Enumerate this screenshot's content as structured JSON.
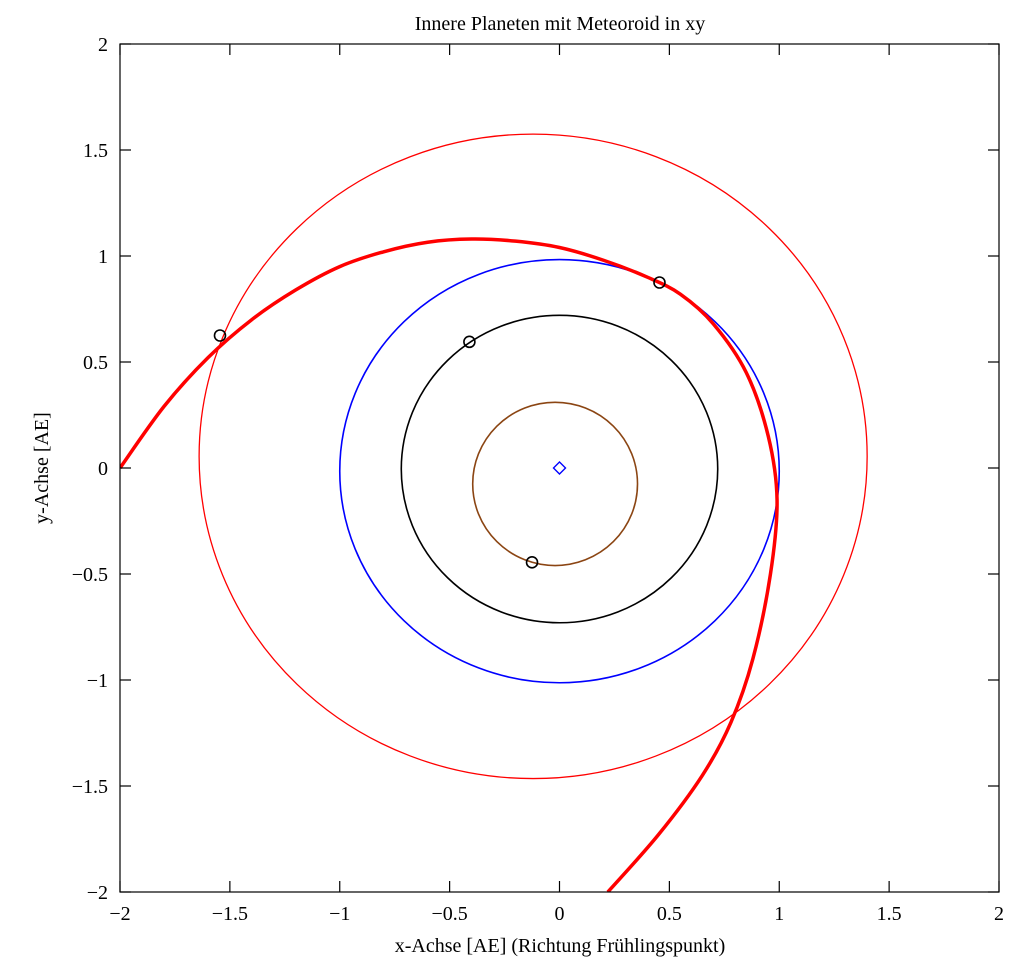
{
  "chart_data": {
    "type": "line",
    "title": "Innere Planeten mit Meteoroid in xy",
    "xlabel": "x-Achse [AE] (Richtung Frühlingspunkt)",
    "ylabel": "y-Achse [AE]",
    "xlim": [
      -2,
      2
    ],
    "ylim": [
      -2,
      2
    ],
    "xticks": [
      -2,
      -1.5,
      -1,
      -0.5,
      0,
      0.5,
      1,
      1.5,
      2
    ],
    "yticks": [
      -2,
      -1.5,
      -1,
      -0.5,
      0,
      0.5,
      1,
      1.5,
      2
    ],
    "xtick_labels": [
      "−2",
      "−1.5",
      "−1",
      "−0.5",
      "0",
      "0.5",
      "1",
      "1.5",
      "2"
    ],
    "ytick_labels": [
      "−2",
      "−1.5",
      "−1",
      "−0.5",
      "0",
      "0.5",
      "1",
      "1.5",
      "2"
    ],
    "grid": false,
    "orbits": [
      {
        "color": "#8B4513",
        "center": [
          -0.02,
          -0.075
        ],
        "rx": 0.375,
        "ry": 0.385
      },
      {
        "color": "#000000",
        "center": [
          0.0,
          -0.005
        ],
        "rx": 0.72,
        "ry": 0.725
      },
      {
        "color": "#0000ff",
        "center": [
          0.0,
          -0.015
        ],
        "rx": 1.0,
        "ry": 0.998
      },
      {
        "color": "#ff0000",
        "center": [
          -0.12,
          0.055
        ],
        "rx": 1.52,
        "ry": 1.52
      }
    ],
    "meteoroid_path": {
      "color": "#ff0000",
      "points": [
        [
          -2.0,
          0.0
        ],
        [
          -1.8,
          0.29
        ],
        [
          -1.6,
          0.52
        ],
        [
          -1.4,
          0.7
        ],
        [
          -1.2,
          0.84
        ],
        [
          -1.0,
          0.95
        ],
        [
          -0.8,
          1.02
        ],
        [
          -0.6,
          1.065
        ],
        [
          -0.4,
          1.08
        ],
        [
          -0.2,
          1.07
        ],
        [
          0.0,
          1.04
        ],
        [
          0.2,
          0.98
        ],
        [
          0.4,
          0.9
        ],
        [
          0.55,
          0.82
        ],
        [
          0.7,
          0.68
        ],
        [
          0.85,
          0.45
        ],
        [
          0.95,
          0.15
        ],
        [
          0.99,
          -0.15
        ],
        [
          0.96,
          -0.5
        ],
        [
          0.88,
          -0.9
        ],
        [
          0.78,
          -1.2
        ],
        [
          0.65,
          -1.45
        ],
        [
          0.45,
          -1.73
        ],
        [
          0.22,
          -2.0
        ]
      ]
    },
    "planet_positions": [
      {
        "x": -0.125,
        "y": -0.445,
        "color": "#000000"
      },
      {
        "x": -0.41,
        "y": 0.595,
        "color": "#000000"
      },
      {
        "x": 0.455,
        "y": 0.875,
        "color": "#000000"
      },
      {
        "x": -1.545,
        "y": 0.625,
        "color": "#000000"
      }
    ],
    "sun": {
      "x": 0.0,
      "y": 0.0,
      "color": "#0000ff",
      "marker": "diamond"
    }
  }
}
